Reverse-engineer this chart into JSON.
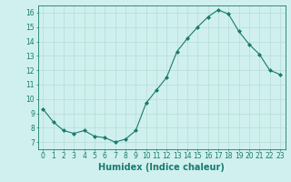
{
  "x": [
    0,
    1,
    2,
    3,
    4,
    5,
    6,
    7,
    8,
    9,
    10,
    11,
    12,
    13,
    14,
    15,
    16,
    17,
    18,
    19,
    20,
    21,
    22,
    23
  ],
  "y": [
    9.3,
    8.4,
    7.8,
    7.6,
    7.8,
    7.4,
    7.3,
    7.0,
    7.2,
    7.8,
    9.7,
    10.6,
    11.5,
    13.3,
    14.2,
    15.0,
    15.7,
    16.2,
    15.9,
    14.7,
    13.8,
    13.1,
    12.0,
    11.7
  ],
  "line_color": "#1a7a6e",
  "marker": "D",
  "marker_size": 2.0,
  "bg_color": "#cff0ee",
  "grid_color": "#b8dbd8",
  "xlabel": "Humidex (Indice chaleur)",
  "xlim": [
    -0.5,
    23.5
  ],
  "ylim": [
    6.5,
    16.5
  ],
  "yticks": [
    7,
    8,
    9,
    10,
    11,
    12,
    13,
    14,
    15,
    16
  ],
  "xticks": [
    0,
    1,
    2,
    3,
    4,
    5,
    6,
    7,
    8,
    9,
    10,
    11,
    12,
    13,
    14,
    15,
    16,
    17,
    18,
    19,
    20,
    21,
    22,
    23
  ],
  "tick_label_fontsize": 5.5,
  "xlabel_fontsize": 7.0
}
